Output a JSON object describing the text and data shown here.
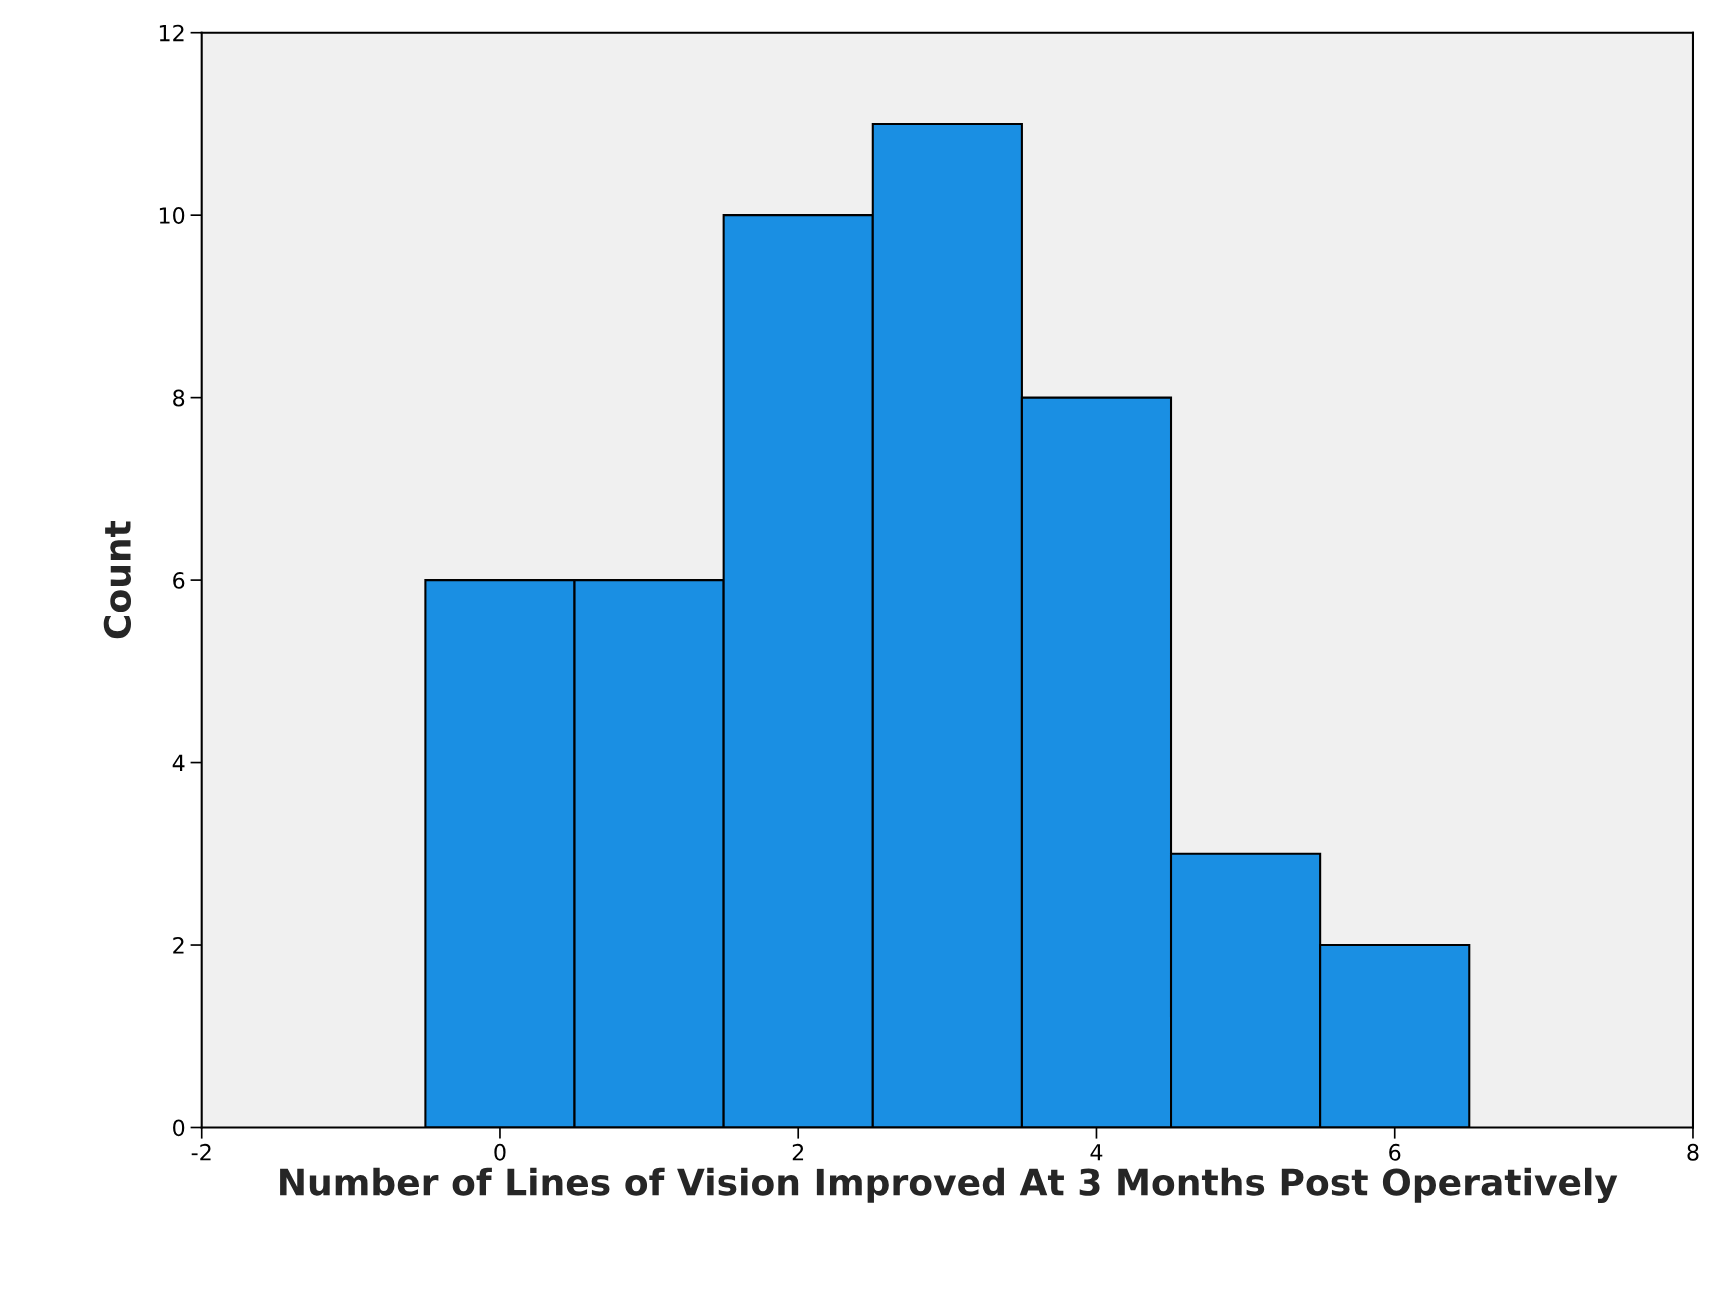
{
  "chart_data": {
    "type": "histogram",
    "xlabel": "Number of Lines of Vision Improved At 3 Months Post Operatively",
    "ylabel": "Count",
    "bins": [
      -0.5,
      0.5,
      1.5,
      2.5,
      3.5,
      4.5,
      5.5,
      6.5
    ],
    "values": [
      6,
      6,
      10,
      11,
      8,
      3,
      2
    ],
    "color": "#1a8fe3",
    "xlim": [
      -2,
      8
    ],
    "xticks": [
      {
        "value": -2,
        "label": "-2"
      },
      0,
      2,
      4,
      6,
      8
    ],
    "ylim": [
      0,
      12
    ],
    "yticks": [
      0,
      2,
      4,
      6,
      8,
      10,
      12
    ],
    "grid": false
  }
}
